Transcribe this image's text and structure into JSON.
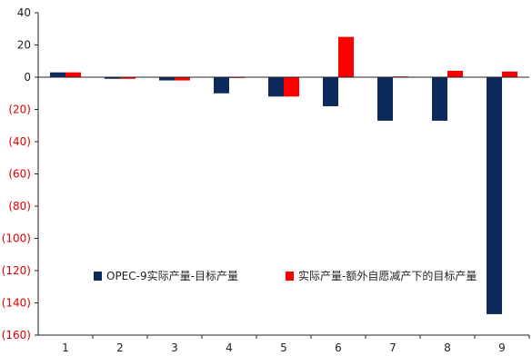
{
  "chart_data": {
    "type": "bar",
    "categories": [
      "1",
      "2",
      "3",
      "4",
      "5",
      "6",
      "7",
      "8",
      "9"
    ],
    "series": [
      {
        "name": "OPEC-9实际产量-目标产量",
        "color": "#0d2a5c",
        "values": [
          3,
          -1,
          -2,
          -10,
          -12,
          -18,
          -27,
          -27,
          -147
        ]
      },
      {
        "name": "实际产量-额外自愿减产下的目标产量",
        "color": "#ff0000",
        "values": [
          3,
          -1,
          -2,
          -0.5,
          -12,
          25,
          0.5,
          4,
          3.5
        ]
      }
    ],
    "yticks": [
      "40",
      "20",
      "0",
      "(20)",
      "(40)",
      "(60)",
      "(80)",
      "(100)",
      "(120)",
      "(140)",
      "(160)"
    ],
    "ylim": [
      -160,
      40
    ],
    "negative_tick_color": "#e00000",
    "positive_tick_color": "#222222",
    "grid": false,
    "legend_position": "lower-center"
  }
}
